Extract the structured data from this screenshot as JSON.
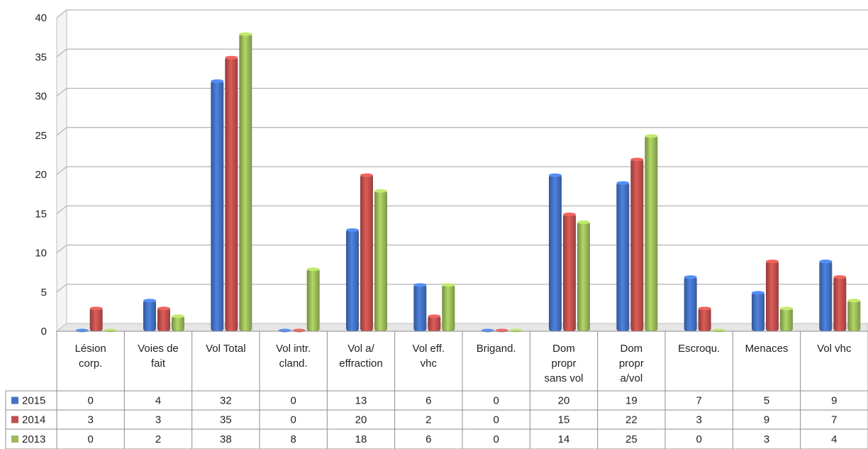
{
  "chart_data": {
    "type": "bar",
    "title": "",
    "xlabel": "",
    "ylabel": "",
    "ylim": [
      0,
      40
    ],
    "yticks": [
      0,
      5,
      10,
      15,
      20,
      25,
      30,
      35,
      40
    ],
    "grid": true,
    "legend": "data-table",
    "categories": [
      [
        "Lésion",
        "corp."
      ],
      [
        "Voies de",
        "fait"
      ],
      [
        "Vol Total"
      ],
      [
        "Vol intr.",
        "cland."
      ],
      [
        "Vol a/",
        "effraction"
      ],
      [
        "Vol eff.",
        "vhc"
      ],
      [
        "Brigand."
      ],
      [
        "Dom",
        "propr",
        "sans vol"
      ],
      [
        "Dom",
        "propr",
        "a/vol"
      ],
      [
        "Escroqu."
      ],
      [
        "Menaces"
      ],
      [
        "Vol vhc"
      ]
    ],
    "series": [
      {
        "name": "2015",
        "color": "#4472c4",
        "values": [
          0,
          4,
          32,
          0,
          13,
          6,
          0,
          20,
          19,
          7,
          5,
          9
        ]
      },
      {
        "name": "2014",
        "color": "#c0504d",
        "values": [
          3,
          3,
          35,
          0,
          20,
          2,
          0,
          15,
          22,
          3,
          9,
          7
        ]
      },
      {
        "name": "2013",
        "color": "#9bbb59",
        "values": [
          0,
          2,
          38,
          8,
          18,
          6,
          0,
          14,
          25,
          0,
          3,
          4
        ]
      }
    ]
  }
}
